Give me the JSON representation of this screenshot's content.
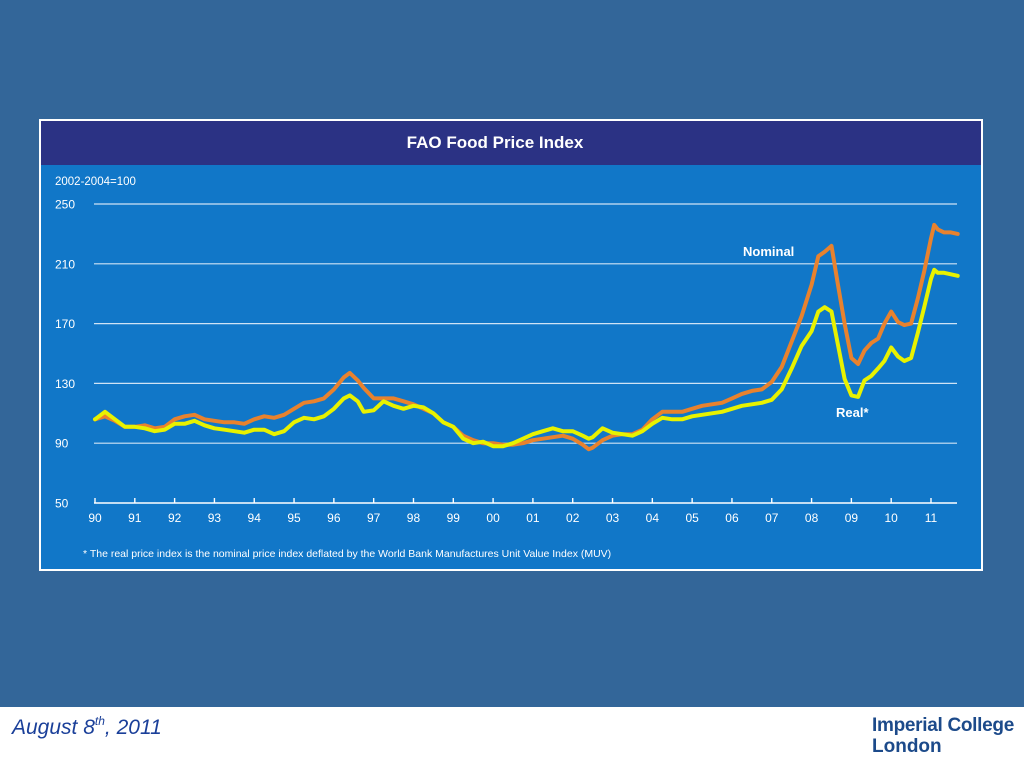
{
  "footer": {
    "date_main": "August 8",
    "date_sup": "th",
    "date_tail": ", 2011",
    "logo_line1": "Imperial College",
    "logo_line2": "London"
  },
  "colors": {
    "slide_background": "#336699",
    "chart_panel": "#1177c8",
    "chart_header": "#2b3284",
    "nominal_line": "#e8822e",
    "real_line": "#e8f200",
    "gridline": "#cfe3f5"
  },
  "chart_data": {
    "type": "line",
    "title": "FAO Food Price Index",
    "unit_label": "2002-2004=100",
    "ylabel": "",
    "xlabel": "",
    "ylim": [
      50,
      250
    ],
    "yticks": [
      250,
      210,
      170,
      130,
      90,
      50
    ],
    "xlim": [
      1990,
      2011.67
    ],
    "xticks": [
      {
        "x": 1990,
        "label": "90"
      },
      {
        "x": 1991,
        "label": "91"
      },
      {
        "x": 1992,
        "label": "92"
      },
      {
        "x": 1993,
        "label": "93"
      },
      {
        "x": 1994,
        "label": "94"
      },
      {
        "x": 1995,
        "label": "95"
      },
      {
        "x": 1996,
        "label": "96"
      },
      {
        "x": 1997,
        "label": "97"
      },
      {
        "x": 1998,
        "label": "98"
      },
      {
        "x": 1999,
        "label": "99"
      },
      {
        "x": 2000,
        "label": "00"
      },
      {
        "x": 2001,
        "label": "01"
      },
      {
        "x": 2002,
        "label": "02"
      },
      {
        "x": 2003,
        "label": "03"
      },
      {
        "x": 2004,
        "label": "04"
      },
      {
        "x": 2005,
        "label": "05"
      },
      {
        "x": 2006,
        "label": "06"
      },
      {
        "x": 2007,
        "label": "07"
      },
      {
        "x": 2008,
        "label": "08"
      },
      {
        "x": 2009,
        "label": "09"
      },
      {
        "x": 2010,
        "label": "10"
      },
      {
        "x": 2011,
        "label": "11"
      }
    ],
    "grid": true,
    "footnote": "* The real price index is the nominal price index deflated by the World Bank Manufactures Unit Value Index (MUV)",
    "series": [
      {
        "name": "Nominal",
        "points": [
          [
            1990.0,
            106
          ],
          [
            1990.25,
            108
          ],
          [
            1990.5,
            105
          ],
          [
            1990.75,
            101
          ],
          [
            1991.0,
            101
          ],
          [
            1991.25,
            102
          ],
          [
            1991.5,
            100
          ],
          [
            1991.75,
            101
          ],
          [
            1992.0,
            106
          ],
          [
            1992.25,
            108
          ],
          [
            1992.5,
            109
          ],
          [
            1992.75,
            106
          ],
          [
            1993.0,
            105
          ],
          [
            1993.25,
            104
          ],
          [
            1993.5,
            104
          ],
          [
            1993.75,
            103
          ],
          [
            1994.0,
            106
          ],
          [
            1994.25,
            108
          ],
          [
            1994.5,
            107
          ],
          [
            1994.75,
            109
          ],
          [
            1995.0,
            113
          ],
          [
            1995.25,
            117
          ],
          [
            1995.5,
            118
          ],
          [
            1995.75,
            120
          ],
          [
            1996.0,
            126
          ],
          [
            1996.25,
            134
          ],
          [
            1996.4,
            137
          ],
          [
            1996.6,
            132
          ],
          [
            1996.75,
            127
          ],
          [
            1997.0,
            120
          ],
          [
            1997.25,
            120
          ],
          [
            1997.5,
            120
          ],
          [
            1997.75,
            118
          ],
          [
            1998.0,
            116
          ],
          [
            1998.25,
            113
          ],
          [
            1998.5,
            110
          ],
          [
            1998.75,
            104
          ],
          [
            1999.0,
            101
          ],
          [
            1999.25,
            95
          ],
          [
            1999.5,
            92
          ],
          [
            1999.75,
            90
          ],
          [
            2000.0,
            90
          ],
          [
            2000.25,
            89
          ],
          [
            2000.5,
            89
          ],
          [
            2000.75,
            90
          ],
          [
            2001.0,
            92
          ],
          [
            2001.25,
            93
          ],
          [
            2001.5,
            94
          ],
          [
            2001.75,
            95
          ],
          [
            2002.0,
            93
          ],
          [
            2002.25,
            89
          ],
          [
            2002.4,
            86
          ],
          [
            2002.5,
            87
          ],
          [
            2002.75,
            92
          ],
          [
            2003.0,
            95
          ],
          [
            2003.25,
            96
          ],
          [
            2003.5,
            96
          ],
          [
            2003.75,
            99
          ],
          [
            2004.0,
            106
          ],
          [
            2004.25,
            111
          ],
          [
            2004.5,
            111
          ],
          [
            2004.75,
            111
          ],
          [
            2005.0,
            113
          ],
          [
            2005.25,
            115
          ],
          [
            2005.5,
            116
          ],
          [
            2005.75,
            117
          ],
          [
            2006.0,
            120
          ],
          [
            2006.25,
            123
          ],
          [
            2006.5,
            125
          ],
          [
            2006.75,
            126
          ],
          [
            2007.0,
            131
          ],
          [
            2007.25,
            141
          ],
          [
            2007.5,
            158
          ],
          [
            2007.75,
            175
          ],
          [
            2008.0,
            196
          ],
          [
            2008.17,
            215
          ],
          [
            2008.33,
            218
          ],
          [
            2008.5,
            222
          ],
          [
            2008.67,
            195
          ],
          [
            2008.83,
            170
          ],
          [
            2009.0,
            147
          ],
          [
            2009.17,
            143
          ],
          [
            2009.33,
            152
          ],
          [
            2009.5,
            157
          ],
          [
            2009.67,
            160
          ],
          [
            2009.83,
            170
          ],
          [
            2010.0,
            178
          ],
          [
            2010.17,
            171
          ],
          [
            2010.33,
            169
          ],
          [
            2010.5,
            170
          ],
          [
            2010.67,
            187
          ],
          [
            2010.83,
            205
          ],
          [
            2011.0,
            227
          ],
          [
            2011.08,
            236
          ],
          [
            2011.17,
            233
          ],
          [
            2011.33,
            231
          ],
          [
            2011.5,
            231
          ],
          [
            2011.67,
            230
          ]
        ]
      },
      {
        "name": "Real*",
        "points": [
          [
            1990.0,
            106
          ],
          [
            1990.25,
            111
          ],
          [
            1990.5,
            106
          ],
          [
            1990.75,
            101
          ],
          [
            1991.0,
            101
          ],
          [
            1991.25,
            100
          ],
          [
            1991.5,
            98
          ],
          [
            1991.75,
            99
          ],
          [
            1992.0,
            103
          ],
          [
            1992.25,
            103
          ],
          [
            1992.5,
            105
          ],
          [
            1992.75,
            102
          ],
          [
            1993.0,
            100
          ],
          [
            1993.25,
            99
          ],
          [
            1993.5,
            98
          ],
          [
            1993.75,
            97
          ],
          [
            1994.0,
            99
          ],
          [
            1994.25,
            99
          ],
          [
            1994.5,
            96
          ],
          [
            1994.75,
            98
          ],
          [
            1995.0,
            104
          ],
          [
            1995.25,
            107
          ],
          [
            1995.5,
            106
          ],
          [
            1995.75,
            108
          ],
          [
            1996.0,
            113
          ],
          [
            1996.25,
            120
          ],
          [
            1996.4,
            122
          ],
          [
            1996.6,
            118
          ],
          [
            1996.75,
            111
          ],
          [
            1997.0,
            112
          ],
          [
            1997.25,
            118
          ],
          [
            1997.5,
            115
          ],
          [
            1997.75,
            113
          ],
          [
            1998.0,
            115
          ],
          [
            1998.25,
            114
          ],
          [
            1998.5,
            110
          ],
          [
            1998.75,
            104
          ],
          [
            1999.0,
            101
          ],
          [
            1999.25,
            93
          ],
          [
            1999.5,
            90
          ],
          [
            1999.75,
            91
          ],
          [
            2000.0,
            88
          ],
          [
            2000.25,
            88
          ],
          [
            2000.5,
            90
          ],
          [
            2000.75,
            93
          ],
          [
            2001.0,
            96
          ],
          [
            2001.25,
            98
          ],
          [
            2001.5,
            100
          ],
          [
            2001.75,
            98
          ],
          [
            2002.0,
            98
          ],
          [
            2002.25,
            95
          ],
          [
            2002.4,
            93
          ],
          [
            2002.5,
            94
          ],
          [
            2002.75,
            100
          ],
          [
            2003.0,
            97
          ],
          [
            2003.25,
            96
          ],
          [
            2003.5,
            95
          ],
          [
            2003.75,
            98
          ],
          [
            2004.0,
            103
          ],
          [
            2004.25,
            107
          ],
          [
            2004.5,
            106
          ],
          [
            2004.75,
            106
          ],
          [
            2005.0,
            108
          ],
          [
            2005.25,
            109
          ],
          [
            2005.5,
            110
          ],
          [
            2005.75,
            111
          ],
          [
            2006.0,
            113
          ],
          [
            2006.25,
            115
          ],
          [
            2006.5,
            116
          ],
          [
            2006.75,
            117
          ],
          [
            2007.0,
            119
          ],
          [
            2007.25,
            126
          ],
          [
            2007.5,
            140
          ],
          [
            2007.75,
            155
          ],
          [
            2008.0,
            165
          ],
          [
            2008.17,
            178
          ],
          [
            2008.33,
            181
          ],
          [
            2008.5,
            178
          ],
          [
            2008.67,
            155
          ],
          [
            2008.83,
            133
          ],
          [
            2009.0,
            122
          ],
          [
            2009.17,
            121
          ],
          [
            2009.33,
            132
          ],
          [
            2009.5,
            135
          ],
          [
            2009.67,
            140
          ],
          [
            2009.83,
            145
          ],
          [
            2010.0,
            154
          ],
          [
            2010.17,
            148
          ],
          [
            2010.33,
            145
          ],
          [
            2010.5,
            147
          ],
          [
            2010.67,
            164
          ],
          [
            2010.83,
            181
          ],
          [
            2011.0,
            200
          ],
          [
            2011.08,
            206
          ],
          [
            2011.17,
            204
          ],
          [
            2011.33,
            204
          ],
          [
            2011.5,
            203
          ],
          [
            2011.67,
            202
          ]
        ]
      }
    ]
  }
}
